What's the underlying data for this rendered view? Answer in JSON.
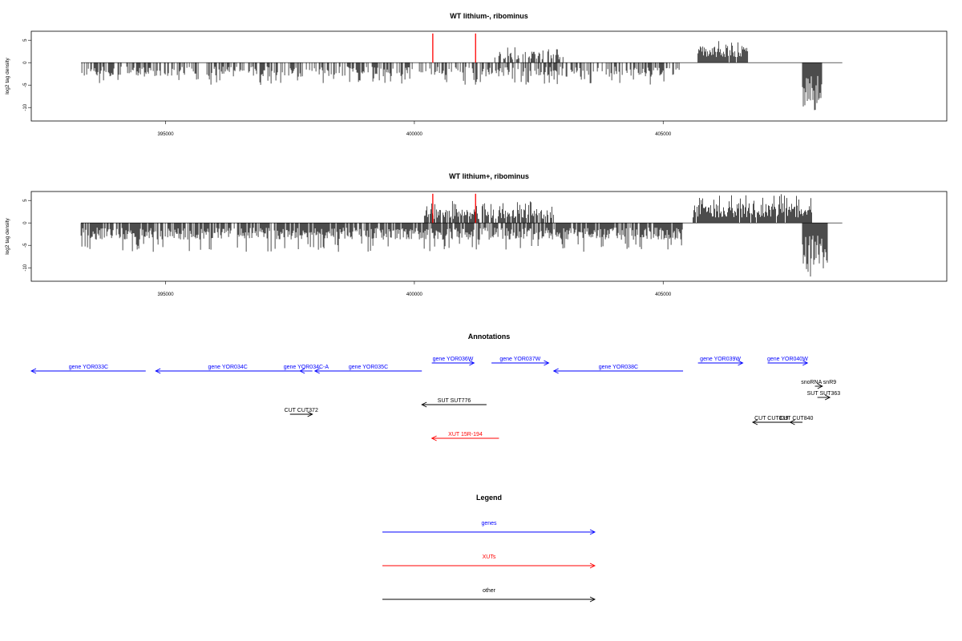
{
  "chart_data": [
    {
      "type": "bar",
      "title": "WT lithium-, ribominus",
      "ylabel": "log2 tag density",
      "xlabel": "",
      "xlim": [
        392300,
        410700
      ],
      "ylim": [
        -13,
        7
      ],
      "xticks": [
        395000,
        400000,
        405000
      ],
      "yticks": [
        -10,
        -5,
        0,
        5
      ],
      "grid": false,
      "series": [
        {
          "strand": "minus",
          "x_start": 393300,
          "x_end": 405400,
          "typical_value": -2.5,
          "min_value": -5,
          "density": 0.55
        },
        {
          "strand": "plus",
          "x_start": 401600,
          "x_end": 403000,
          "typical_value": 2.0,
          "max_value": 3.5,
          "density": 0.55
        },
        {
          "strand": "plus",
          "x_start": 405700,
          "x_end": 406700,
          "typical_value": 3.0,
          "max_value": 5.0,
          "density": 0.95
        },
        {
          "strand": "minus",
          "x_start": 407800,
          "x_end": 408200,
          "typical_value": -8.0,
          "min_value": -11.0,
          "density": 1.0
        }
      ],
      "highlights": [
        {
          "x": 400370,
          "value": 6.5,
          "color": "#ff0000"
        },
        {
          "x": 401230,
          "value": 6.5,
          "color": "#ff0000"
        }
      ]
    },
    {
      "type": "bar",
      "title": "WT lithium+, ribominus",
      "ylabel": "log2 tag density",
      "xlabel": "",
      "xlim": [
        392300,
        410700
      ],
      "ylim": [
        -13,
        7
      ],
      "xticks": [
        395000,
        400000,
        405000
      ],
      "yticks": [
        -10,
        -5,
        0,
        5
      ],
      "grid": false,
      "series": [
        {
          "strand": "minus",
          "x_start": 393300,
          "x_end": 405400,
          "typical_value": -3.0,
          "min_value": -6.5,
          "density": 0.85
        },
        {
          "strand": "plus",
          "x_start": 400200,
          "x_end": 402800,
          "typical_value": 2.5,
          "max_value": 5.0,
          "density": 0.75
        },
        {
          "strand": "plus",
          "x_start": 405600,
          "x_end": 408000,
          "typical_value": 3.5,
          "max_value": 6.5,
          "density": 0.95
        },
        {
          "strand": "minus",
          "x_start": 407800,
          "x_end": 408300,
          "typical_value": -8.0,
          "min_value": -12.0,
          "density": 1.0
        }
      ],
      "highlights": [
        {
          "x": 400370,
          "value": 6.5,
          "color": "#ff0000"
        },
        {
          "x": 401230,
          "value": 6.5,
          "color": "#ff0000"
        }
      ]
    }
  ],
  "annotations": {
    "title": "Annotations",
    "features": [
      {
        "label": "gene YOR033C",
        "start": 392300,
        "end": 394600,
        "strand": "-",
        "color": "#0000ff",
        "row": 1
      },
      {
        "label": "gene YOR034C",
        "start": 394800,
        "end": 397700,
        "strand": "-",
        "color": "#0000ff",
        "row": 1
      },
      {
        "label": "gene YOR034C-A",
        "start": 397700,
        "end": 397950,
        "strand": "-",
        "color": "#0000ff",
        "row": 1
      },
      {
        "label": "gene YOR035C",
        "start": 398000,
        "end": 400150,
        "strand": "-",
        "color": "#0000ff",
        "row": 1
      },
      {
        "label": "gene YOR036W",
        "start": 400350,
        "end": 401200,
        "strand": "+",
        "color": "#0000ff",
        "row": 0
      },
      {
        "label": "gene YOR037W",
        "start": 401550,
        "end": 402700,
        "strand": "+",
        "color": "#0000ff",
        "row": 0
      },
      {
        "label": "gene YOR038C",
        "start": 402800,
        "end": 405400,
        "strand": "-",
        "color": "#0000ff",
        "row": 1
      },
      {
        "label": "gene YOR039W",
        "start": 405700,
        "end": 406600,
        "strand": "+",
        "color": "#0000ff",
        "row": 0
      },
      {
        "label": "gene YOR040W",
        "start": 407100,
        "end": 407900,
        "strand": "+",
        "color": "#0000ff",
        "row": 0
      },
      {
        "label": "snoRNA snR9",
        "start": 408050,
        "end": 408200,
        "strand": "+",
        "color": "#000000",
        "row": 2
      },
      {
        "label": "SUT SUT363",
        "start": 408100,
        "end": 408350,
        "strand": "+",
        "color": "#000000",
        "row": 3
      },
      {
        "label": "SUT SUT776",
        "start": 400150,
        "end": 401450,
        "strand": "-",
        "color": "#000000",
        "row": 4
      },
      {
        "label": "CUT CUT372",
        "start": 397500,
        "end": 397950,
        "strand": "+",
        "color": "#000000",
        "row": 5
      },
      {
        "label": "CUT CUT839",
        "start": 406800,
        "end": 407550,
        "strand": "-",
        "color": "#000000",
        "row": 6
      },
      {
        "label": "CUT CUT840",
        "start": 407550,
        "end": 407800,
        "strand": "-",
        "color": "#000000",
        "row": 6
      },
      {
        "label": "XUT 15R-194",
        "start": 400350,
        "end": 401700,
        "strand": "-",
        "color": "#ff0000",
        "row": 7
      }
    ]
  },
  "legend": {
    "title": "Legend",
    "items": [
      {
        "label": "genes",
        "color": "#0000ff"
      },
      {
        "label": "XUTs",
        "color": "#ff0000"
      },
      {
        "label": "other",
        "color": "#000000"
      }
    ]
  }
}
